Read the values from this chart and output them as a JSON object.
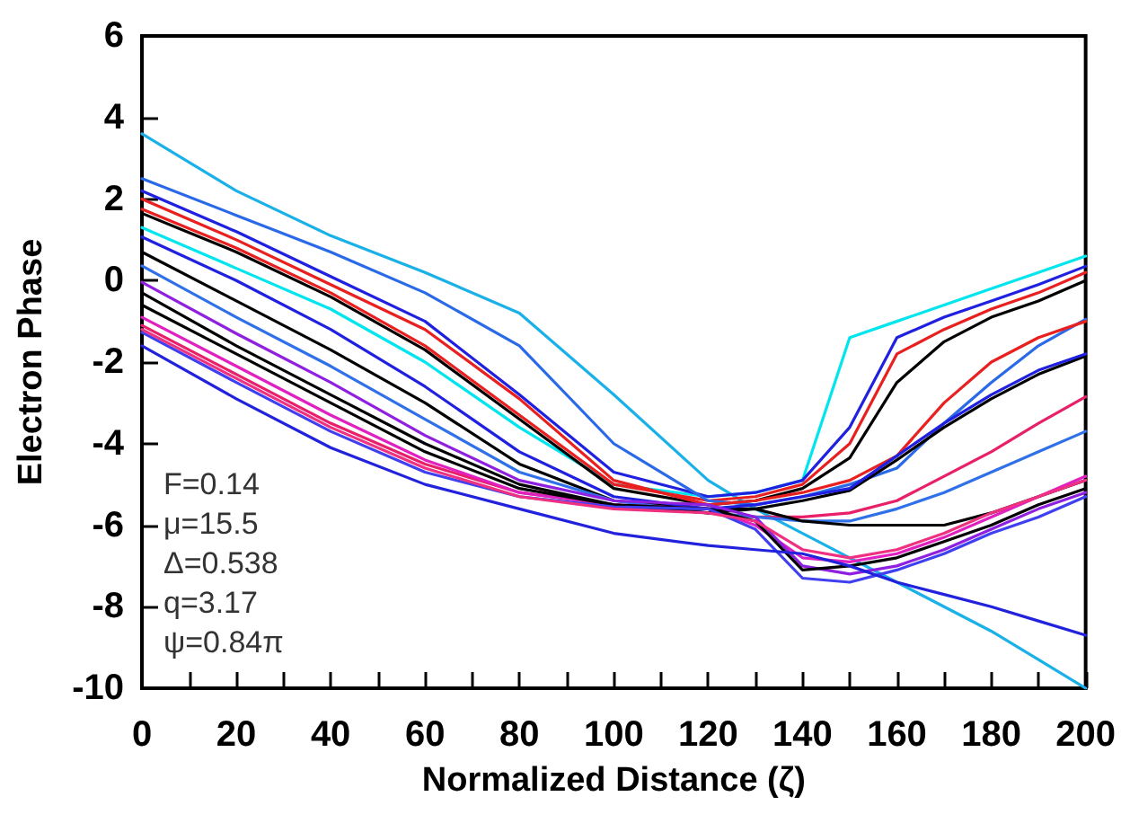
{
  "chart_data": {
    "type": "line",
    "xlabel": "Normalized Distance (ζ)",
    "ylabel": "Electron Phase",
    "x": [
      0,
      20,
      40,
      60,
      80,
      100,
      120,
      130,
      140,
      150,
      160,
      170,
      180,
      190,
      200
    ],
    "xlim": [
      0,
      200
    ],
    "ylim": [
      -10,
      6
    ],
    "xticks": [
      0,
      {
        "value": 10,
        "label": null
      },
      20,
      {
        "value": 30,
        "label": null
      },
      40,
      {
        "value": 50,
        "label": null
      },
      60,
      {
        "value": 70,
        "label": null
      },
      80,
      {
        "value": 90,
        "label": null
      },
      100,
      {
        "value": 110,
        "label": null
      },
      120,
      {
        "value": 130,
        "label": null
      },
      140,
      {
        "value": 150,
        "label": null
      },
      160,
      {
        "value": 170,
        "label": null
      },
      180,
      {
        "value": 190,
        "label": null
      },
      200
    ],
    "yticks": [
      -10,
      -8,
      -6,
      -4,
      -2,
      0,
      2,
      4,
      6
    ],
    "marker": "none",
    "line_style": "solid",
    "annotations": [
      "F=0.14",
      "μ=15.5",
      "Δ=0.538",
      "q=3.17",
      "ψ=0.84π"
    ],
    "series": [
      {
        "color": "#1ab0e8",
        "values": [
          3.6,
          2.2,
          1.1,
          0.2,
          -0.8,
          -2.8,
          -4.9,
          -5.6,
          -6.2,
          -6.8,
          -7.4,
          -8.0,
          -8.6,
          -9.3,
          -10
        ]
      },
      {
        "color": "#00e5ee",
        "values": [
          1.3,
          0.3,
          -0.7,
          -2.0,
          -3.6,
          -5.0,
          -5.3,
          -5.2,
          -4.9,
          -1.4,
          -1.0,
          -0.6,
          -0.2,
          0.2,
          0.6
        ]
      },
      {
        "color": "#2020e0",
        "values": [
          2.2,
          1.2,
          0.1,
          -1.0,
          -2.8,
          -4.7,
          -5.3,
          -5.2,
          -4.9,
          -3.6,
          -1.4,
          -0.9,
          -0.5,
          -0.1,
          0.35
        ]
      },
      {
        "color": "#e82020",
        "values": [
          1.75,
          0.8,
          -0.3,
          -1.6,
          -3.3,
          -5.0,
          -5.4,
          -5.3,
          -5.0,
          -4.0,
          -1.8,
          -1.2,
          -0.7,
          -0.3,
          0.2
        ]
      },
      {
        "color": "#000000",
        "values": [
          1.65,
          0.7,
          -0.4,
          -1.7,
          -3.4,
          -5.1,
          -5.5,
          -5.4,
          -5.1,
          -4.35,
          -2.5,
          -1.5,
          -0.9,
          -0.5,
          0.0
        ]
      },
      {
        "color": "#2a6ae8",
        "values": [
          2.5,
          1.6,
          0.7,
          -0.3,
          -1.6,
          -4.0,
          -5.4,
          -5.5,
          -5.3,
          -5.0,
          -4.6,
          -3.5,
          -2.5,
          -1.6,
          -0.95
        ]
      },
      {
        "color": "#e82020",
        "values": [
          2.0,
          1.0,
          -0.1,
          -1.2,
          -2.9,
          -4.9,
          -5.5,
          -5.4,
          -5.2,
          -4.9,
          -4.3,
          -3.0,
          -2.0,
          -1.4,
          -1.0
        ]
      },
      {
        "color": "#000000",
        "values": [
          0.7,
          -0.5,
          -1.7,
          -3.0,
          -4.5,
          -5.4,
          -5.6,
          -5.6,
          -5.4,
          -5.15,
          -4.4,
          -3.6,
          -2.9,
          -2.3,
          -1.85
        ]
      },
      {
        "color": "#2020e0",
        "values": [
          1.07,
          0.0,
          -1.2,
          -2.6,
          -4.2,
          -5.3,
          -5.6,
          -5.5,
          -5.3,
          -5.1,
          -4.3,
          -3.5,
          -2.8,
          -2.2,
          -1.8
        ]
      },
      {
        "color": "#e8206a",
        "values": [
          -1.1,
          -2.3,
          -3.5,
          -4.5,
          -5.2,
          -5.5,
          -5.7,
          -5.8,
          -5.8,
          -5.7,
          -5.4,
          -4.8,
          -4.2,
          -3.5,
          -2.85
        ]
      },
      {
        "color": "#3070e8",
        "values": [
          0.36,
          -0.9,
          -2.1,
          -3.4,
          -4.7,
          -5.4,
          -5.7,
          -5.8,
          -5.9,
          -5.9,
          -5.6,
          -5.2,
          -4.7,
          -4.2,
          -3.7
        ]
      },
      {
        "color": "#000000",
        "values": [
          -0.3,
          -1.6,
          -2.8,
          -4.0,
          -5.0,
          -5.5,
          -5.7,
          -5.6,
          -5.9,
          -6.0,
          -6.0,
          -6.0,
          -5.7,
          -5.3,
          -4.9
        ]
      },
      {
        "color": "#e020c0",
        "values": [
          -0.9,
          -2.1,
          -3.3,
          -4.4,
          -5.2,
          -5.5,
          -5.6,
          -6.0,
          -6.8,
          -6.9,
          -6.7,
          -6.3,
          -5.8,
          -5.3,
          -4.8
        ]
      },
      {
        "color": "#9020e0",
        "values": [
          -0.04,
          -1.3,
          -2.5,
          -3.8,
          -4.9,
          -5.4,
          -5.5,
          -5.8,
          -7.0,
          -7.2,
          -7.0,
          -6.6,
          -6.1,
          -5.6,
          -5.2
        ]
      },
      {
        "color": "#000000",
        "values": [
          -0.6,
          -1.8,
          -3.0,
          -4.2,
          -5.1,
          -5.5,
          -5.6,
          -5.9,
          -7.1,
          -7.0,
          -6.8,
          -6.4,
          -6.0,
          -5.5,
          -5.1
        ]
      },
      {
        "color": "#4040f0",
        "values": [
          -1.27,
          -2.5,
          -3.7,
          -4.7,
          -5.3,
          -5.55,
          -5.6,
          -6.1,
          -7.3,
          -7.4,
          -7.1,
          -6.7,
          -6.2,
          -5.8,
          -5.3
        ]
      },
      {
        "color": "#f03080",
        "values": [
          -1.2,
          -2.4,
          -3.6,
          -4.6,
          -5.3,
          -5.6,
          -5.7,
          -5.9,
          -6.6,
          -6.8,
          -6.6,
          -6.2,
          -5.7,
          -5.3,
          -4.9
        ]
      },
      {
        "color": "#2222dd",
        "values": [
          -1.6,
          -2.9,
          -4.1,
          -5.0,
          -5.6,
          -6.2,
          -6.5,
          -6.6,
          -6.7,
          -7.0,
          -7.4,
          -7.7,
          -8.0,
          -8.35,
          -8.7
        ]
      }
    ]
  }
}
